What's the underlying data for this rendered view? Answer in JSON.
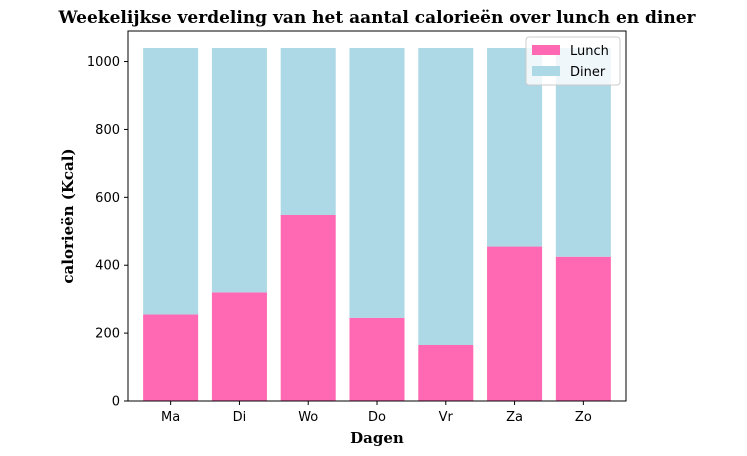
{
  "chart_data": {
    "type": "bar",
    "stacked": true,
    "title": "Weekelijkse verdeling van het aantal calorieën over lunch en diner",
    "xlabel": "Dagen",
    "ylabel": "calorieën (Kcal)",
    "categories": [
      "Ma",
      "Di",
      "Wo",
      "Do",
      "Vr",
      "Za",
      "Zo"
    ],
    "ylim": [
      0,
      1090
    ],
    "yticks": [
      0,
      200,
      400,
      600,
      800,
      1000
    ],
    "series": [
      {
        "name": "Lunch",
        "color": "#ff69b4",
        "values": [
          255,
          320,
          548,
          245,
          165,
          455,
          425
        ]
      },
      {
        "name": "Diner",
        "color": "#add8e6",
        "values": [
          785,
          720,
          492,
          795,
          875,
          585,
          615
        ]
      }
    ],
    "legend_position": "top-right",
    "grid": false
  }
}
